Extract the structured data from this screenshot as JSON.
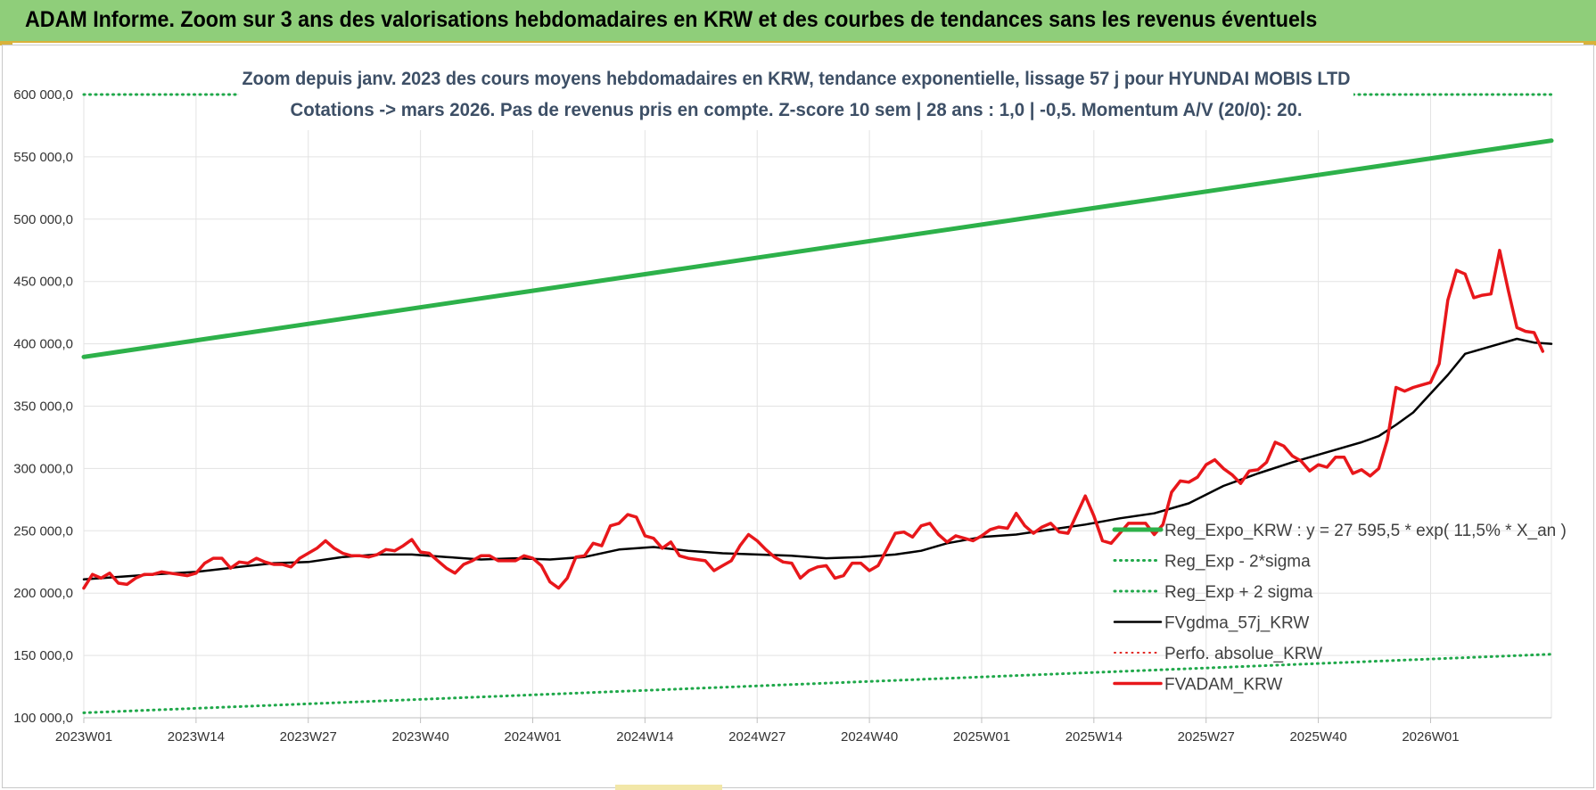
{
  "header": {
    "title": "ADAM Informe. Zoom sur 3 ans des valorisations hebdomadaires en KRW et des courbes de tendances sans les revenus éventuels"
  },
  "chart_data": {
    "type": "line",
    "title": "Zoom depuis janv. 2023 des cours moyens hebdomadaires en KRW, tendance exponentielle, lissage 57 j pour HYUNDAI MOBIS LTD",
    "subtitle": "Cotations -> mars 2026. Pas de revenus pris en compte. Z-score 10 sem | 28 ans : 1,0 | -0,5. Momentum A/V (20/0): 20.",
    "ylim": [
      100000,
      600000
    ],
    "y_ticks": [
      {
        "value": 600000,
        "label": "600 000,0"
      },
      {
        "value": 550000,
        "label": "550 000,0"
      },
      {
        "value": 500000,
        "label": "500 000,0"
      },
      {
        "value": 450000,
        "label": "450 000,0"
      },
      {
        "value": 400000,
        "label": "400 000,0"
      },
      {
        "value": 350000,
        "label": "350 000,0"
      },
      {
        "value": 300000,
        "label": "300 000,0"
      },
      {
        "value": 250000,
        "label": "250 000,0"
      },
      {
        "value": 200000,
        "label": "200 000,0"
      },
      {
        "value": 150000,
        "label": "150 000,0"
      },
      {
        "value": 100000,
        "label": "100 000,0"
      }
    ],
    "x_ticks": [
      {
        "week": 0,
        "label": "2023W01"
      },
      {
        "week": 13,
        "label": "2023W14"
      },
      {
        "week": 26,
        "label": "2023W27"
      },
      {
        "week": 39,
        "label": "2023W40"
      },
      {
        "week": 52,
        "label": "2024W01"
      },
      {
        "week": 65,
        "label": "2024W14"
      },
      {
        "week": 78,
        "label": "2024W27"
      },
      {
        "week": 91,
        "label": "2024W40"
      },
      {
        "week": 104,
        "label": "2025W01"
      },
      {
        "week": 117,
        "label": "2025W14"
      },
      {
        "week": 130,
        "label": "2025W27"
      },
      {
        "week": 143,
        "label": "2025W40"
      },
      {
        "week": 156,
        "label": "2026W01"
      }
    ],
    "x_max_week": 170,
    "grid": true,
    "legend_position": "right",
    "series": [
      {
        "name": "Reg_Expo_KRW : y = 27 595,5 * exp( 11,5% *  X_an )",
        "color": "#2db14a",
        "style": "solid",
        "width": 5,
        "points": [
          [
            0,
            389500
          ],
          [
            170,
            563000
          ]
        ]
      },
      {
        "name": "Reg_Exp - 2*sigma",
        "color": "#1fa84a",
        "style": "dotted",
        "width": 3,
        "points": [
          [
            0,
            104000
          ],
          [
            170,
            151000
          ]
        ]
      },
      {
        "name": "Reg_Exp + 2 sigma",
        "color": "#1fa84a",
        "style": "dotted",
        "width": 3,
        "points": [
          [
            0,
            600000
          ],
          [
            170,
            600000
          ]
        ]
      },
      {
        "name": "FVgdma_57j_KRW",
        "color": "#000000",
        "style": "solid",
        "width": 2.5,
        "points": [
          [
            0,
            211000
          ],
          [
            4,
            213000
          ],
          [
            8,
            215000
          ],
          [
            13,
            217000
          ],
          [
            18,
            221000
          ],
          [
            22,
            224000
          ],
          [
            26,
            225000
          ],
          [
            30,
            229000
          ],
          [
            34,
            231000
          ],
          [
            38,
            231000
          ],
          [
            42,
            229000
          ],
          [
            46,
            227000
          ],
          [
            50,
            228000
          ],
          [
            54,
            227000
          ],
          [
            58,
            229000
          ],
          [
            62,
            235000
          ],
          [
            66,
            237000
          ],
          [
            70,
            234000
          ],
          [
            74,
            232000
          ],
          [
            78,
            231000
          ],
          [
            82,
            230000
          ],
          [
            86,
            228000
          ],
          [
            90,
            229000
          ],
          [
            94,
            231000
          ],
          [
            97,
            234000
          ],
          [
            100,
            240000
          ],
          [
            104,
            245000
          ],
          [
            108,
            247000
          ],
          [
            112,
            251000
          ],
          [
            116,
            255000
          ],
          [
            120,
            260000
          ],
          [
            124,
            264000
          ],
          [
            128,
            272000
          ],
          [
            132,
            286000
          ],
          [
            136,
            296000
          ],
          [
            140,
            305000
          ],
          [
            144,
            313000
          ],
          [
            148,
            321000
          ],
          [
            150,
            326000
          ],
          [
            152,
            335000
          ],
          [
            154,
            345000
          ],
          [
            156,
            360000
          ],
          [
            158,
            375000
          ],
          [
            160,
            392000
          ],
          [
            163,
            398000
          ],
          [
            166,
            404000
          ],
          [
            168,
            401000
          ],
          [
            170,
            400000
          ]
        ]
      },
      {
        "name": "Perfo. absolue_KRW",
        "color": "#e0201b",
        "style": "dotted",
        "width": 2,
        "points": []
      },
      {
        "name": "FVADAM_KRW",
        "color": "#e8171b",
        "style": "solid",
        "width": 3.5,
        "points": [
          [
            0,
            204000
          ],
          [
            1,
            215000
          ],
          [
            2,
            212000
          ],
          [
            3,
            216000
          ],
          [
            4,
            208000
          ],
          [
            5,
            207000
          ],
          [
            6,
            212000
          ],
          [
            7,
            215000
          ],
          [
            8,
            215000
          ],
          [
            9,
            217000
          ],
          [
            10,
            216000
          ],
          [
            11,
            215000
          ],
          [
            12,
            214000
          ],
          [
            13,
            216000
          ],
          [
            14,
            224000
          ],
          [
            15,
            228000
          ],
          [
            16,
            228000
          ],
          [
            17,
            220000
          ],
          [
            18,
            225000
          ],
          [
            19,
            224000
          ],
          [
            20,
            228000
          ],
          [
            21,
            225000
          ],
          [
            22,
            223000
          ],
          [
            23,
            223000
          ],
          [
            24,
            221000
          ],
          [
            25,
            228000
          ],
          [
            26,
            232000
          ],
          [
            27,
            236000
          ],
          [
            28,
            242000
          ],
          [
            29,
            236000
          ],
          [
            30,
            232000
          ],
          [
            31,
            230000
          ],
          [
            32,
            230000
          ],
          [
            33,
            229000
          ],
          [
            34,
            231000
          ],
          [
            35,
            235000
          ],
          [
            36,
            234000
          ],
          [
            37,
            238000
          ],
          [
            38,
            243000
          ],
          [
            39,
            233000
          ],
          [
            40,
            232000
          ],
          [
            41,
            226000
          ],
          [
            42,
            220000
          ],
          [
            43,
            216000
          ],
          [
            44,
            223000
          ],
          [
            45,
            226000
          ],
          [
            46,
            230000
          ],
          [
            47,
            230000
          ],
          [
            48,
            226000
          ],
          [
            49,
            226000
          ],
          [
            50,
            226000
          ],
          [
            51,
            230000
          ],
          [
            52,
            228000
          ],
          [
            53,
            222000
          ],
          [
            54,
            209000
          ],
          [
            55,
            204000
          ],
          [
            56,
            212000
          ],
          [
            57,
            229000
          ],
          [
            58,
            230000
          ],
          [
            59,
            240000
          ],
          [
            60,
            238000
          ],
          [
            61,
            254000
          ],
          [
            62,
            256000
          ],
          [
            63,
            263000
          ],
          [
            64,
            261000
          ],
          [
            65,
            246000
          ],
          [
            66,
            244000
          ],
          [
            67,
            236000
          ],
          [
            68,
            241000
          ],
          [
            69,
            230000
          ],
          [
            70,
            228000
          ],
          [
            71,
            227000
          ],
          [
            72,
            226000
          ],
          [
            73,
            218000
          ],
          [
            74,
            222000
          ],
          [
            75,
            226000
          ],
          [
            76,
            238000
          ],
          [
            77,
            247000
          ],
          [
            78,
            242000
          ],
          [
            79,
            235000
          ],
          [
            80,
            229000
          ],
          [
            81,
            225000
          ],
          [
            82,
            224000
          ],
          [
            83,
            212000
          ],
          [
            84,
            218000
          ],
          [
            85,
            221000
          ],
          [
            86,
            222000
          ],
          [
            87,
            212000
          ],
          [
            88,
            214000
          ],
          [
            89,
            224000
          ],
          [
            90,
            224000
          ],
          [
            91,
            218000
          ],
          [
            92,
            222000
          ],
          [
            93,
            235000
          ],
          [
            94,
            248000
          ],
          [
            95,
            249000
          ],
          [
            96,
            245000
          ],
          [
            97,
            254000
          ],
          [
            98,
            256000
          ],
          [
            99,
            247000
          ],
          [
            100,
            241000
          ],
          [
            101,
            246000
          ],
          [
            102,
            244000
          ],
          [
            103,
            242000
          ],
          [
            104,
            246000
          ],
          [
            105,
            251000
          ],
          [
            106,
            253000
          ],
          [
            107,
            252000
          ],
          [
            108,
            264000
          ],
          [
            109,
            254000
          ],
          [
            110,
            248000
          ],
          [
            111,
            253000
          ],
          [
            112,
            256000
          ],
          [
            113,
            249000
          ],
          [
            114,
            248000
          ],
          [
            115,
            263000
          ],
          [
            116,
            278000
          ],
          [
            117,
            262000
          ],
          [
            118,
            242000
          ],
          [
            119,
            240000
          ],
          [
            120,
            248000
          ],
          [
            121,
            256000
          ],
          [
            122,
            256000
          ],
          [
            123,
            256000
          ],
          [
            124,
            247000
          ],
          [
            125,
            255000
          ],
          [
            126,
            281000
          ],
          [
            127,
            290000
          ],
          [
            128,
            289000
          ],
          [
            129,
            293000
          ],
          [
            130,
            303000
          ],
          [
            131,
            307000
          ],
          [
            132,
            300000
          ],
          [
            133,
            295000
          ],
          [
            134,
            288000
          ],
          [
            135,
            298000
          ],
          [
            136,
            299000
          ],
          [
            137,
            305000
          ],
          [
            138,
            321000
          ],
          [
            139,
            318000
          ],
          [
            140,
            310000
          ],
          [
            141,
            306000
          ],
          [
            142,
            298000
          ],
          [
            143,
            303000
          ],
          [
            144,
            301000
          ],
          [
            145,
            309000
          ],
          [
            146,
            309000
          ],
          [
            147,
            296000
          ],
          [
            148,
            299000
          ],
          [
            149,
            294000
          ],
          [
            150,
            300000
          ],
          [
            151,
            323000
          ],
          [
            152,
            365000
          ],
          [
            153,
            362000
          ],
          [
            154,
            365000
          ],
          [
            155,
            367000
          ],
          [
            156,
            369000
          ],
          [
            157,
            384000
          ],
          [
            158,
            435000
          ],
          [
            159,
            459000
          ],
          [
            160,
            456000
          ],
          [
            161,
            437000
          ],
          [
            162,
            439000
          ],
          [
            163,
            440000
          ],
          [
            164,
            475000
          ],
          [
            165,
            443000
          ],
          [
            166,
            413000
          ],
          [
            167,
            410000
          ],
          [
            168,
            409000
          ],
          [
            169,
            394000
          ]
        ]
      }
    ]
  }
}
